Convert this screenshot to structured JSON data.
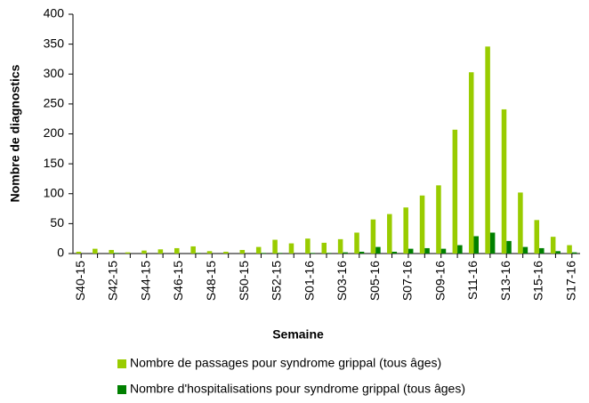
{
  "chart_data": {
    "type": "bar",
    "categories": [
      "S40-15",
      null,
      "S42-15",
      null,
      "S44-15",
      null,
      "S46-15",
      null,
      "S48-15",
      null,
      "S50-15",
      null,
      "S52-15",
      null,
      "S01-16",
      null,
      "S03-16",
      null,
      "S05-16",
      null,
      "S07-16",
      null,
      "S09-16",
      null,
      "S11-16",
      null,
      "S13-16",
      null,
      "S15-16",
      null,
      "S17-16"
    ],
    "series": [
      {
        "name": "Nombre de passages pour syndrome grippal (tous âges)",
        "color": "#99cc00",
        "values": [
          3,
          8,
          6,
          2,
          5,
          7,
          9,
          12,
          4,
          3,
          6,
          11,
          23,
          17,
          25,
          18,
          24,
          35,
          57,
          66,
          77,
          97,
          114,
          207,
          303,
          346,
          241,
          102,
          56,
          28,
          14
        ]
      },
      {
        "name": "Nombre d'hospitalisations pour syndrome grippal (tous âges)",
        "color": "#008000",
        "values": [
          0,
          0,
          1,
          0,
          0,
          0,
          0,
          1,
          0,
          0,
          0,
          1,
          1,
          0,
          1,
          1,
          2,
          3,
          11,
          3,
          8,
          9,
          8,
          14,
          29,
          35,
          21,
          11,
          9,
          4,
          2
        ]
      }
    ],
    "ylim": [
      0,
      400
    ],
    "yticks": [
      0,
      50,
      100,
      150,
      200,
      250,
      300,
      350,
      400
    ],
    "xlabel": "Semaine",
    "ylabel": "Nombre de diagnostics"
  }
}
